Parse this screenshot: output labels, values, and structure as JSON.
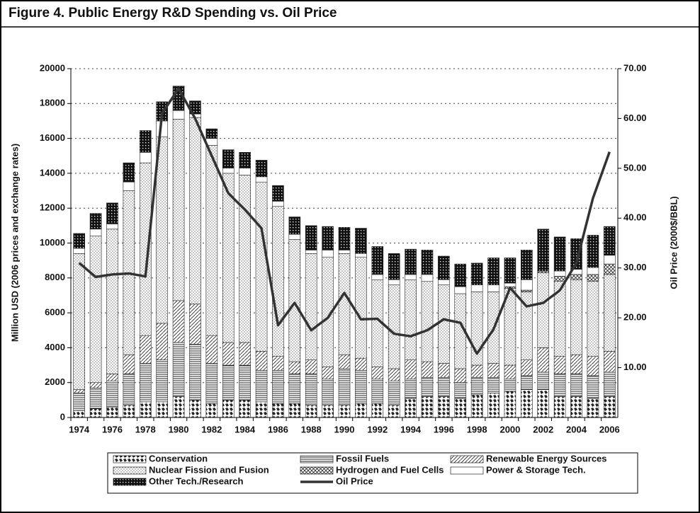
{
  "chart_data": {
    "type": "bar",
    "stacked": true,
    "title": "Figure 4.  Public Energy R&D Spending vs. Oil Price",
    "ylabel": "Million USD (2006 prices and exchange rates)",
    "y2label": "Oil Price (2000$/BBL)",
    "categories": [
      "1974",
      null,
      "1976",
      null,
      "1978",
      null,
      "1980",
      null,
      "1982",
      null,
      "1984",
      null,
      "1986",
      null,
      "1988",
      null,
      "1990",
      null,
      "1992",
      null,
      "1994",
      null,
      "1996",
      null,
      "1998",
      null,
      "2000",
      null,
      "2002",
      null,
      "2004",
      null,
      "2006"
    ],
    "ylim": [
      0,
      20000
    ],
    "yticks": [
      0,
      2000,
      4000,
      6000,
      8000,
      10000,
      12000,
      14000,
      16000,
      18000,
      20000
    ],
    "y2lim": [
      0,
      70
    ],
    "y2ticks": [
      {
        "value": 10,
        "label": "10.00"
      },
      {
        "value": 20,
        "label": "20.00"
      },
      {
        "value": 30,
        "label": "30.00"
      },
      {
        "value": 40,
        "label": "40.00"
      },
      {
        "value": 50,
        "label": "50.00"
      },
      {
        "value": 60,
        "label": "60.00"
      },
      {
        "value": 70,
        "label": "70.00"
      }
    ],
    "grid": true,
    "series": [
      {
        "name": "Conservation",
        "color": "#222",
        "pattern": "blotch",
        "values": [
          400,
          500,
          600,
          700,
          900,
          900,
          1200,
          1000,
          800,
          1000,
          1000,
          900,
          800,
          800,
          700,
          700,
          700,
          800,
          800,
          700,
          1100,
          1200,
          1200,
          1100,
          1300,
          1400,
          1500,
          1600,
          1600,
          1200,
          1200,
          1100,
          1200
        ]
      },
      {
        "name": "Fossil Fuels",
        "color": "#222",
        "pattern": "hlines",
        "values": [
          1000,
          1200,
          1500,
          1800,
          2200,
          2400,
          3100,
          3200,
          2300,
          2000,
          2000,
          1800,
          1900,
          1700,
          1800,
          1500,
          2100,
          1900,
          1400,
          1400,
          1100,
          1100,
          1100,
          900,
          1000,
          900,
          700,
          800,
          1000,
          1300,
          1300,
          1300,
          1400
        ]
      },
      {
        "name": "Renewable Energy Sources",
        "color": "#222",
        "pattern": "diag",
        "values": [
          200,
          300,
          400,
          1100,
          1600,
          2100,
          2400,
          2300,
          1600,
          1300,
          1300,
          1100,
          800,
          700,
          800,
          700,
          800,
          700,
          700,
          700,
          1100,
          900,
          800,
          800,
          700,
          800,
          800,
          900,
          1400,
          1000,
          1100,
          1100,
          1200
        ]
      },
      {
        "name": "Nuclear Fission and Fusion",
        "color": "#222",
        "pattern": "dots",
        "values": [
          7800,
          8400,
          8300,
          9400,
          9900,
          10700,
          10400,
          10700,
          10900,
          9700,
          9600,
          9700,
          8600,
          7000,
          6100,
          6300,
          5800,
          5800,
          5000,
          4800,
          4600,
          4600,
          4500,
          4300,
          4200,
          4100,
          4400,
          3900,
          4300,
          4300,
          4300,
          4300,
          4400
        ]
      },
      {
        "name": "Hydrogen and Fuel Cells",
        "color": "#222",
        "pattern": "cross",
        "values": [
          0,
          0,
          0,
          0,
          0,
          0,
          0,
          0,
          0,
          0,
          0,
          0,
          0,
          0,
          0,
          0,
          0,
          0,
          0,
          0,
          0,
          0,
          0,
          0,
          0,
          0,
          100,
          100,
          100,
          300,
          300,
          400,
          600
        ]
      },
      {
        "name": "Power & Storage Tech.",
        "color": "#222",
        "pattern": "none",
        "values": [
          300,
          400,
          300,
          500,
          600,
          900,
          500,
          200,
          400,
          300,
          400,
          300,
          300,
          300,
          200,
          400,
          200,
          200,
          300,
          300,
          300,
          400,
          300,
          400,
          400,
          400,
          200,
          600,
          0,
          300,
          300,
          400,
          500
        ]
      },
      {
        "name": "Other Tech./Research",
        "color": "#222",
        "pattern": "grid",
        "values": [
          850,
          900,
          1200,
          1100,
          1250,
          1100,
          1400,
          750,
          550,
          1050,
          900,
          950,
          900,
          1000,
          1400,
          1350,
          1300,
          1450,
          1600,
          1500,
          1450,
          1400,
          1350,
          1300,
          1250,
          1550,
          1450,
          1700,
          2400,
          1950,
          1750,
          1850,
          1650
        ]
      },
      {
        "name": "Oil Price",
        "type": "line",
        "axis": "y2",
        "color": "#333",
        "values": [
          31,
          28.2,
          28.7,
          28.9,
          28.3,
          61,
          66,
          60,
          52.5,
          45,
          41.7,
          38,
          18.5,
          23,
          17.5,
          20,
          25,
          19.7,
          19.8,
          16.8,
          16.3,
          17.5,
          19.7,
          19,
          12.8,
          17.7,
          26,
          22.3,
          23,
          25.5,
          31,
          44,
          53.3
        ]
      }
    ]
  }
}
